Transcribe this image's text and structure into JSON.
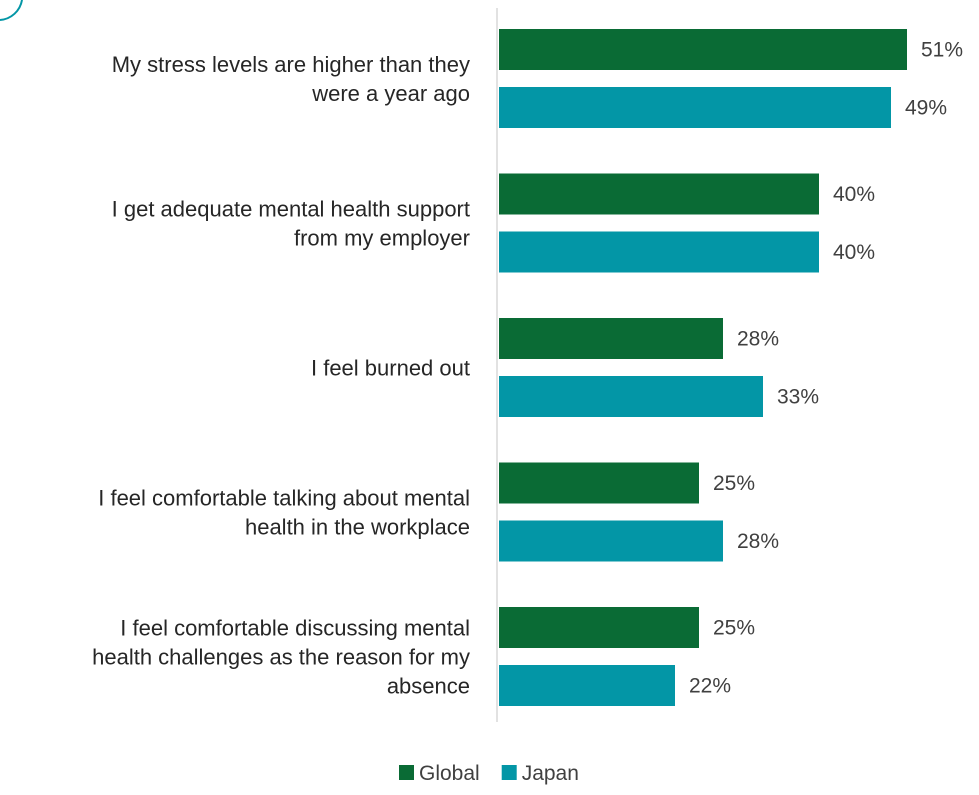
{
  "chart_data": {
    "type": "bar",
    "orientation": "horizontal",
    "categories": [
      [
        "My stress levels are higher than they",
        "were a year ago"
      ],
      [
        "I get adequate mental health support",
        "from my employer"
      ],
      [
        "I feel burned out"
      ],
      [
        "I feel comfortable talking about mental",
        "health in the workplace"
      ],
      [
        "I feel comfortable discussing mental",
        "health challenges as the reason for my",
        "absence"
      ]
    ],
    "series": [
      {
        "name": "Global",
        "color": "#0a6b35",
        "values": [
          51,
          40,
          28,
          25,
          25
        ]
      },
      {
        "name": "Japan",
        "color": "#0396a6",
        "values": [
          49,
          40,
          33,
          28,
          22
        ]
      }
    ],
    "value_format": "{v}%",
    "xlim": [
      0,
      60
    ],
    "grid": false,
    "legend_position": "bottom",
    "axis_color": "#d9d9d9",
    "decoration_color": "#0396a6"
  }
}
